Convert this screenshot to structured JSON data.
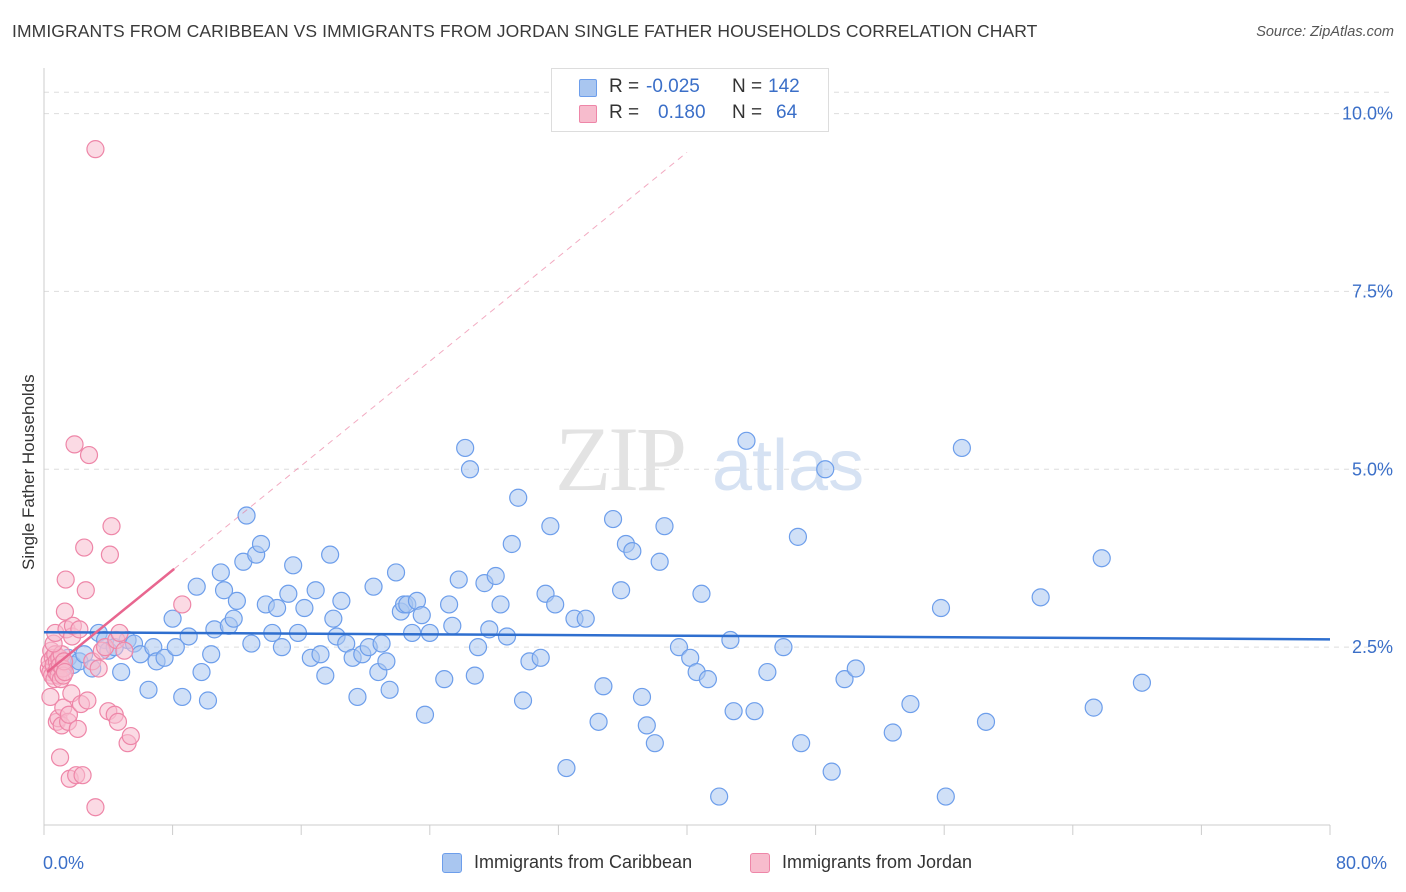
{
  "title": "IMMIGRANTS FROM CARIBBEAN VS IMMIGRANTS FROM JORDAN SINGLE FATHER HOUSEHOLDS CORRELATION CHART",
  "source": "Source: ZipAtlas.com",
  "watermark": {
    "zip": "ZIP",
    "atlas": "atlas"
  },
  "legend": {
    "rows": [
      {
        "r_label": "R =",
        "r_value": "-0.025",
        "n_label": "N =",
        "n_value": "142",
        "color": "#6d9eeb"
      },
      {
        "r_label": "R =",
        "r_value": "0.180",
        "n_label": "N =",
        "n_value": "64",
        "color": "#f28bab"
      }
    ]
  },
  "colors": {
    "caribbean_fill": "#a9c6f0",
    "caribbean_stroke": "#6d9eeb",
    "caribbean_line": "#2f6fcf",
    "jordan_fill": "#f7bccd",
    "jordan_stroke": "#ee86a8",
    "jordan_line": "#e8668f",
    "axis_text": "#3b6fc8",
    "grid": "#dddddd"
  },
  "chart_data": {
    "type": "scatter",
    "title": "IMMIGRANTS FROM CARIBBEAN VS IMMIGRANTS FROM JORDAN SINGLE FATHER HOUSEHOLDS CORRELATION CHART",
    "xlabel": "",
    "ylabel": "Single Father Households",
    "xlim": [
      0,
      80
    ],
    "ylim": [
      0,
      10.5
    ],
    "x_tick_labels": [
      "0.0%",
      "80.0%"
    ],
    "y_ticks": [
      2.5,
      5.0,
      7.5,
      10.0
    ],
    "y_tick_labels": [
      "2.5%",
      "5.0%",
      "7.5%",
      "10.0%"
    ],
    "legend_position": "bottom",
    "series": [
      {
        "name": "Immigrants from Caribbean",
        "r": -0.025,
        "n": 142,
        "trend": {
          "x": [
            0,
            80
          ],
          "y": [
            2.71,
            2.61
          ],
          "extrapolated": []
        },
        "points": [
          [
            0.8,
            2.3
          ],
          [
            1.2,
            2.2
          ],
          [
            1.5,
            2.35
          ],
          [
            1.8,
            2.25
          ],
          [
            2.2,
            2.3
          ],
          [
            2.5,
            2.4
          ],
          [
            3.0,
            2.2
          ],
          [
            3.4,
            2.7
          ],
          [
            3.8,
            2.6
          ],
          [
            4.0,
            2.45
          ],
          [
            4.4,
            2.5
          ],
          [
            4.8,
            2.15
          ],
          [
            5.2,
            2.6
          ],
          [
            5.6,
            2.55
          ],
          [
            6.0,
            2.4
          ],
          [
            6.5,
            1.9
          ],
          [
            6.8,
            2.5
          ],
          [
            7.0,
            2.3
          ],
          [
            7.5,
            2.35
          ],
          [
            8.0,
            2.9
          ],
          [
            8.2,
            2.5
          ],
          [
            8.6,
            1.8
          ],
          [
            9.0,
            2.65
          ],
          [
            9.5,
            3.35
          ],
          [
            9.8,
            2.15
          ],
          [
            10.2,
            1.75
          ],
          [
            10.4,
            2.4
          ],
          [
            10.6,
            2.75
          ],
          [
            11.0,
            3.55
          ],
          [
            11.2,
            3.3
          ],
          [
            11.5,
            2.8
          ],
          [
            11.8,
            2.9
          ],
          [
            12.0,
            3.15
          ],
          [
            12.4,
            3.7
          ],
          [
            12.6,
            4.35
          ],
          [
            12.9,
            2.55
          ],
          [
            13.2,
            3.8
          ],
          [
            13.5,
            3.95
          ],
          [
            13.8,
            3.1
          ],
          [
            14.2,
            2.7
          ],
          [
            14.5,
            3.05
          ],
          [
            14.8,
            2.5
          ],
          [
            15.2,
            3.25
          ],
          [
            15.5,
            3.65
          ],
          [
            15.8,
            2.7
          ],
          [
            16.2,
            3.05
          ],
          [
            16.6,
            2.35
          ],
          [
            16.9,
            3.3
          ],
          [
            17.2,
            2.4
          ],
          [
            17.5,
            2.1
          ],
          [
            17.8,
            3.8
          ],
          [
            18.0,
            2.9
          ],
          [
            18.2,
            2.65
          ],
          [
            18.5,
            3.15
          ],
          [
            18.8,
            2.55
          ],
          [
            19.2,
            2.35
          ],
          [
            19.5,
            1.8
          ],
          [
            19.8,
            2.4
          ],
          [
            20.2,
            2.5
          ],
          [
            20.5,
            3.35
          ],
          [
            20.8,
            2.15
          ],
          [
            21.0,
            2.55
          ],
          [
            21.3,
            2.3
          ],
          [
            21.5,
            1.9
          ],
          [
            21.9,
            3.55
          ],
          [
            22.2,
            3.0
          ],
          [
            22.4,
            3.1
          ],
          [
            22.6,
            3.1
          ],
          [
            22.9,
            2.7
          ],
          [
            23.2,
            3.15
          ],
          [
            23.5,
            2.95
          ],
          [
            23.7,
            1.55
          ],
          [
            24.0,
            2.7
          ],
          [
            24.9,
            2.05
          ],
          [
            25.2,
            3.1
          ],
          [
            25.4,
            2.8
          ],
          [
            25.8,
            3.45
          ],
          [
            26.2,
            5.3
          ],
          [
            26.5,
            5.0
          ],
          [
            26.8,
            2.1
          ],
          [
            27.0,
            2.5
          ],
          [
            27.4,
            3.4
          ],
          [
            27.7,
            2.75
          ],
          [
            28.1,
            3.5
          ],
          [
            28.4,
            3.1
          ],
          [
            28.8,
            2.65
          ],
          [
            29.1,
            3.95
          ],
          [
            29.5,
            4.6
          ],
          [
            29.8,
            1.75
          ],
          [
            30.2,
            2.3
          ],
          [
            30.9,
            2.35
          ],
          [
            31.2,
            3.25
          ],
          [
            31.5,
            4.2
          ],
          [
            31.8,
            3.1
          ],
          [
            32.5,
            0.8
          ],
          [
            33.0,
            2.9
          ],
          [
            33.7,
            2.9
          ],
          [
            34.5,
            1.45
          ],
          [
            34.8,
            1.95
          ],
          [
            35.4,
            4.3
          ],
          [
            35.9,
            3.3
          ],
          [
            36.2,
            3.95
          ],
          [
            36.6,
            3.85
          ],
          [
            37.2,
            1.8
          ],
          [
            37.5,
            1.4
          ],
          [
            38.0,
            1.15
          ],
          [
            38.3,
            3.7
          ],
          [
            38.6,
            4.2
          ],
          [
            39.5,
            2.5
          ],
          [
            40.2,
            2.35
          ],
          [
            40.6,
            2.15
          ],
          [
            40.9,
            3.25
          ],
          [
            41.3,
            2.05
          ],
          [
            42.0,
            0.4
          ],
          [
            42.7,
            2.6
          ],
          [
            42.9,
            1.6
          ],
          [
            43.7,
            5.4
          ],
          [
            44.2,
            1.6
          ],
          [
            45.0,
            2.15
          ],
          [
            46.0,
            2.5
          ],
          [
            46.9,
            4.05
          ],
          [
            47.1,
            1.15
          ],
          [
            48.6,
            5.0
          ],
          [
            49.0,
            0.75
          ],
          [
            49.8,
            2.05
          ],
          [
            50.5,
            2.2
          ],
          [
            52.8,
            1.3
          ],
          [
            53.9,
            1.7
          ],
          [
            55.8,
            3.05
          ],
          [
            56.1,
            0.4
          ],
          [
            57.1,
            5.3
          ],
          [
            58.6,
            1.45
          ],
          [
            62.0,
            3.2
          ],
          [
            65.3,
            1.65
          ],
          [
            65.8,
            3.75
          ],
          [
            68.3,
            2.0
          ]
        ]
      },
      {
        "name": "Immigrants from Jordan",
        "r": 0.18,
        "n": 64,
        "trend": {
          "x": [
            0.2,
            8.1
          ],
          "y": [
            2.15,
            3.6
          ],
          "extrapolated": [
            8.1,
            40
          ]
        },
        "points": [
          [
            0.3,
            2.2
          ],
          [
            0.35,
            2.3
          ],
          [
            0.4,
            2.15
          ],
          [
            0.45,
            2.45
          ],
          [
            0.5,
            2.1
          ],
          [
            0.55,
            2.35
          ],
          [
            0.6,
            2.25
          ],
          [
            0.65,
            2.05
          ],
          [
            0.7,
            2.4
          ],
          [
            0.75,
            2.15
          ],
          [
            0.8,
            2.3
          ],
          [
            0.85,
            2.2
          ],
          [
            0.9,
            2.1
          ],
          [
            0.95,
            2.35
          ],
          [
            1.0,
            2.25
          ],
          [
            1.05,
            2.05
          ],
          [
            1.1,
            2.4
          ],
          [
            1.15,
            2.2
          ],
          [
            1.2,
            2.1
          ],
          [
            1.25,
            2.3
          ],
          [
            1.3,
            2.15
          ],
          [
            0.4,
            1.8
          ],
          [
            0.6,
            2.55
          ],
          [
            0.7,
            2.7
          ],
          [
            0.8,
            1.45
          ],
          [
            0.9,
            1.5
          ],
          [
            1.0,
            0.95
          ],
          [
            1.1,
            1.4
          ],
          [
            1.2,
            1.65
          ],
          [
            1.3,
            3.0
          ],
          [
            1.35,
            3.45
          ],
          [
            1.4,
            2.75
          ],
          [
            1.5,
            1.45
          ],
          [
            1.55,
            1.55
          ],
          [
            1.6,
            0.65
          ],
          [
            1.7,
            1.85
          ],
          [
            1.75,
            2.65
          ],
          [
            1.8,
            2.8
          ],
          [
            1.9,
            5.35
          ],
          [
            2.0,
            0.7
          ],
          [
            2.1,
            1.35
          ],
          [
            2.2,
            2.75
          ],
          [
            2.3,
            1.7
          ],
          [
            2.4,
            0.7
          ],
          [
            2.5,
            3.9
          ],
          [
            2.6,
            3.3
          ],
          [
            2.7,
            1.75
          ],
          [
            2.8,
            5.2
          ],
          [
            3.0,
            2.3
          ],
          [
            3.2,
            0.25
          ],
          [
            3.4,
            2.2
          ],
          [
            3.6,
            2.45
          ],
          [
            3.8,
            2.5
          ],
          [
            4.0,
            1.6
          ],
          [
            4.1,
            3.8
          ],
          [
            4.2,
            4.2
          ],
          [
            4.4,
            1.55
          ],
          [
            4.5,
            2.6
          ],
          [
            4.6,
            1.45
          ],
          [
            4.7,
            2.7
          ],
          [
            5.0,
            2.45
          ],
          [
            5.2,
            1.15
          ],
          [
            5.4,
            1.25
          ],
          [
            8.6,
            3.1
          ],
          [
            3.2,
            9.5
          ]
        ]
      }
    ]
  },
  "bottom_legend": [
    {
      "label": "Immigrants from Caribbean"
    },
    {
      "label": "Immigrants from Jordan"
    }
  ]
}
